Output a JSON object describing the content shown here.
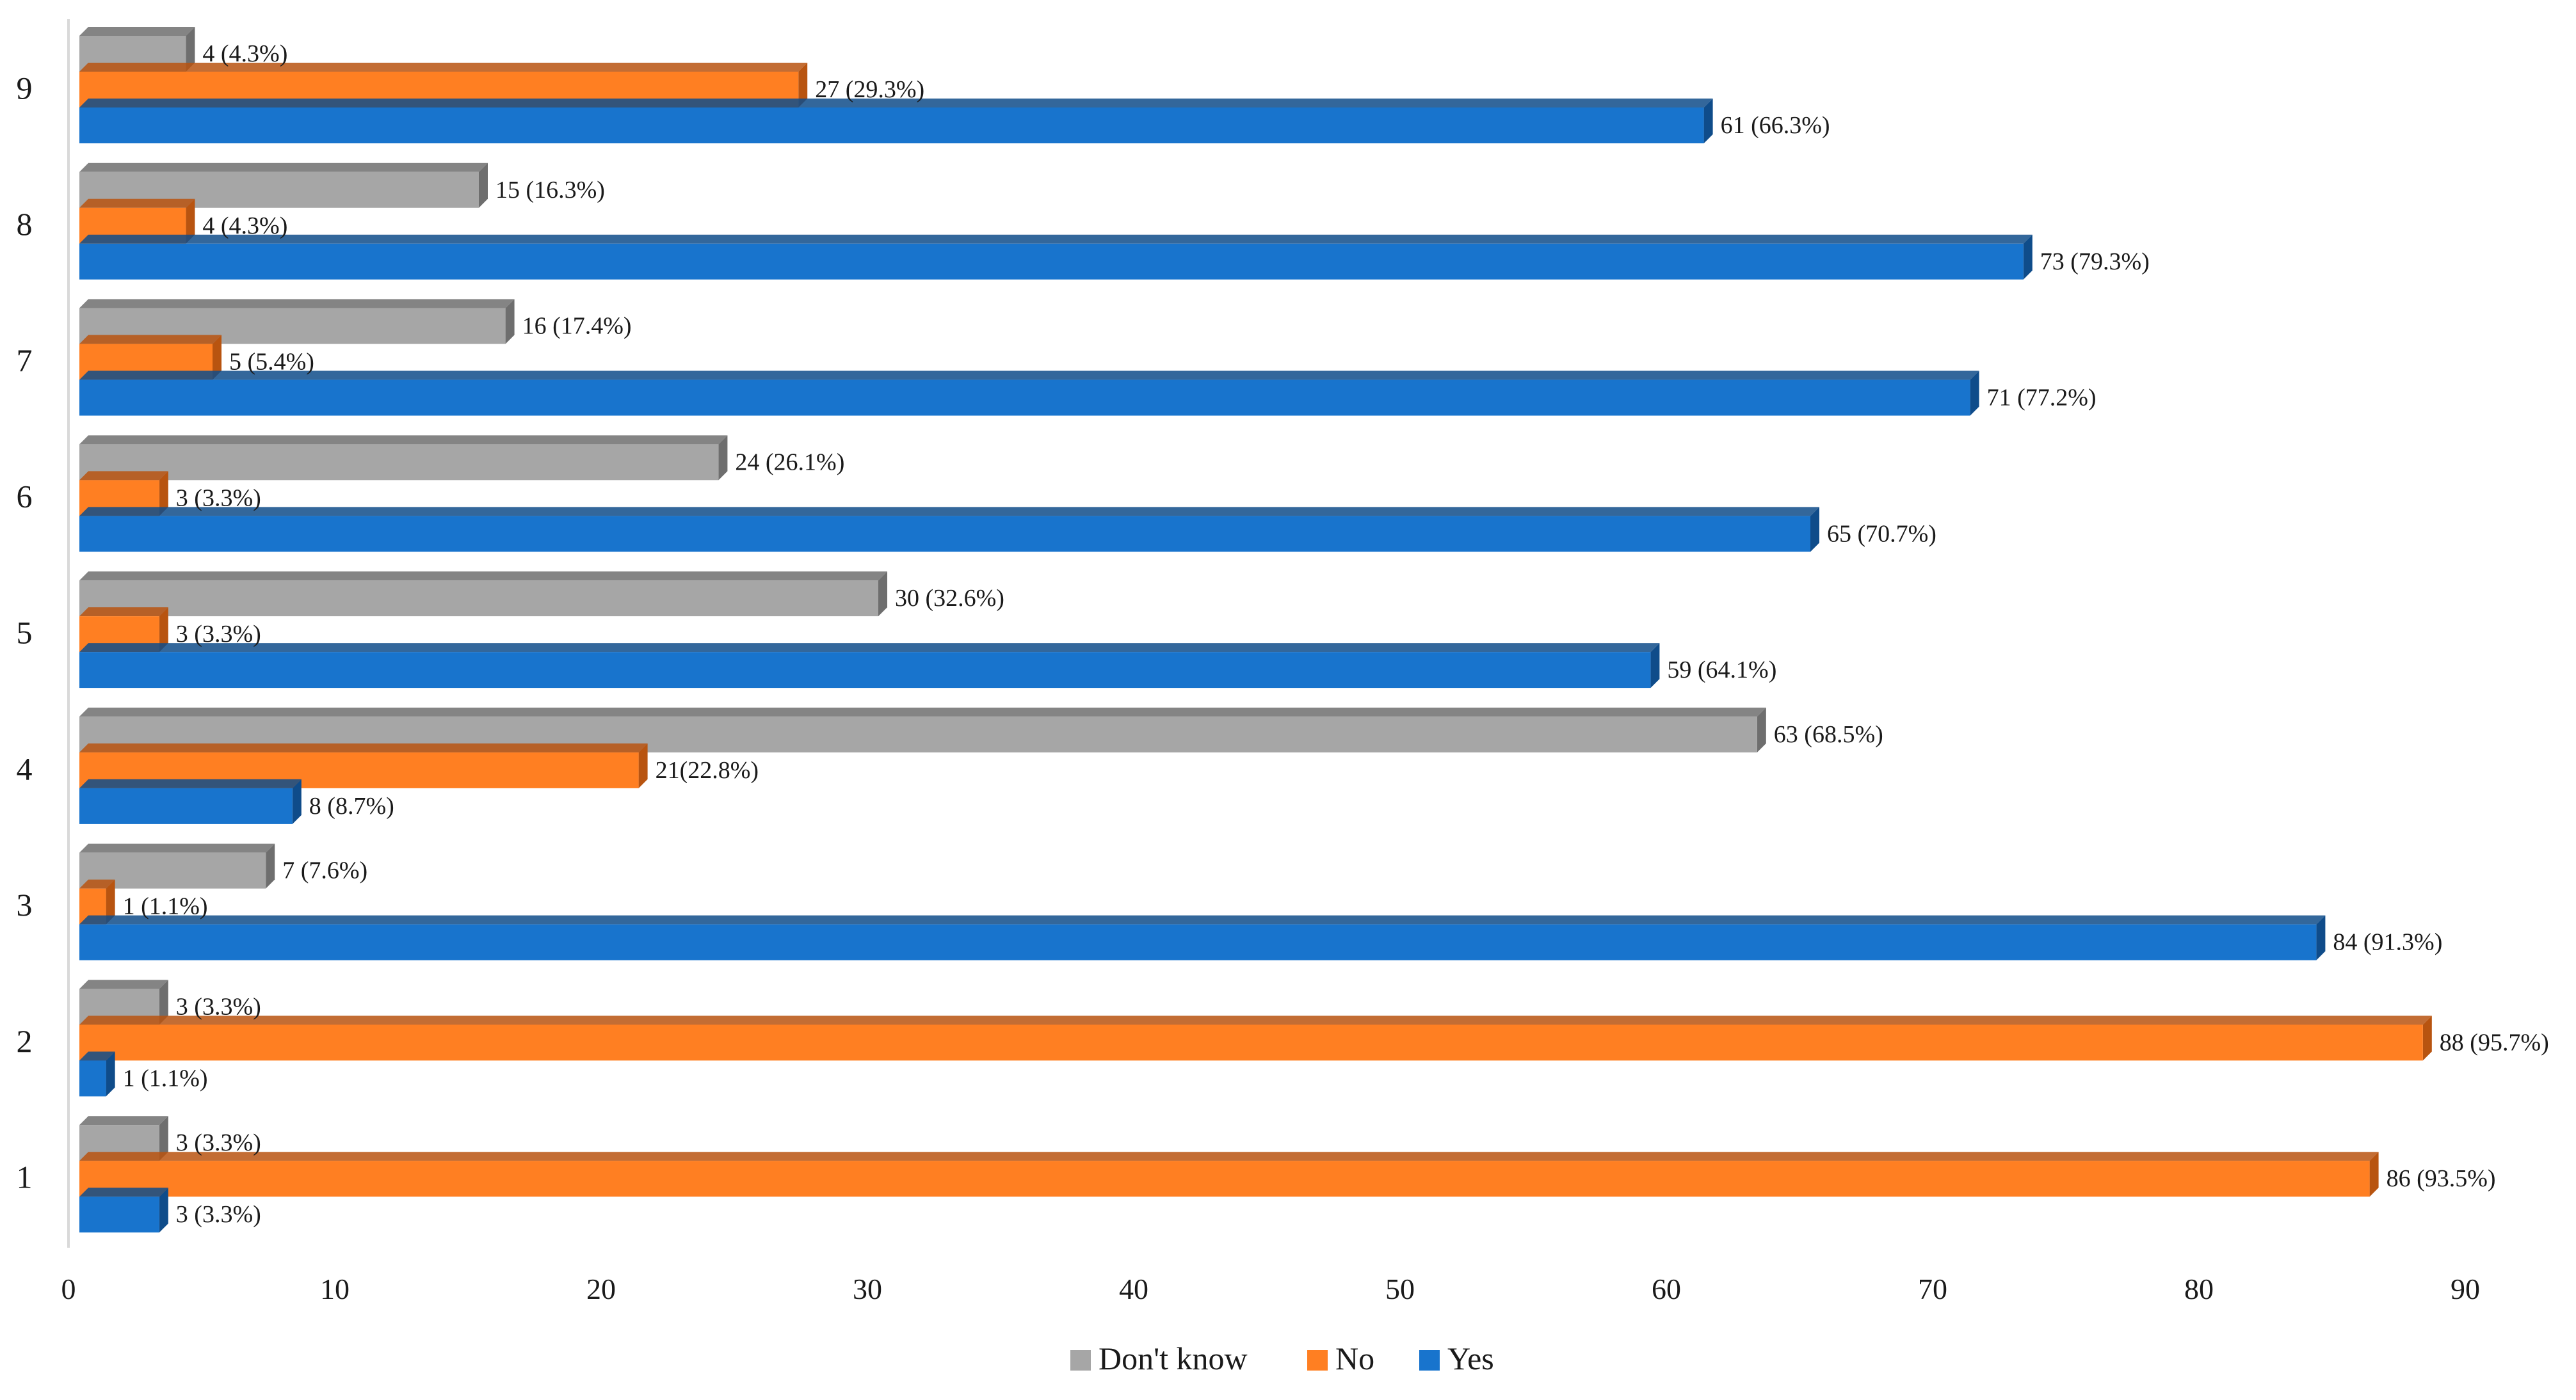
{
  "chart_data": {
    "type": "bar",
    "orientation": "horizontal",
    "style": "3d-clustered",
    "categories": [
      "1",
      "2",
      "3",
      "4",
      "5",
      "6",
      "7",
      "8",
      "9"
    ],
    "series": [
      {
        "name": "Yes",
        "color": "#1874CD",
        "side_color": "#0F4C8A",
        "values": [
          3,
          1,
          84,
          8,
          59,
          65,
          71,
          73,
          61
        ],
        "labels": [
          "3 (3.3%)",
          "1 (1.1%)",
          "84 (91.3%)",
          "8 (8.7%)",
          "59 (64.1%)",
          "65 (70.7%)",
          "71 (77.2%)",
          "73 (79.3%)",
          "61 (66.3%)"
        ]
      },
      {
        "name": "No",
        "color": "#FF7F22",
        "side_color": "#B85410",
        "values": [
          86,
          88,
          1,
          21,
          3,
          3,
          5,
          4,
          27
        ],
        "labels": [
          "86 (93.5%)",
          "88 (95.7%)",
          "1 (1.1%)",
          "21(22.8%)",
          "3 (3.3%)",
          "3 (3.3%)",
          "5 (5.4%)",
          "4 (4.3%)",
          "27 (29.3%)"
        ]
      },
      {
        "name": "Don't know",
        "color": "#A6A6A6",
        "side_color": "#6E6E6E",
        "values": [
          3,
          3,
          7,
          63,
          30,
          24,
          16,
          15,
          4
        ],
        "labels": [
          "3 (3.3%)",
          "3 (3.3%)",
          "7 (7.6%)",
          "63 (68.5%)",
          "30 (32.6%)",
          "24 (26.1%)",
          "16 (17.4%)",
          "15 (16.3%)",
          "4 (4.3%)"
        ]
      }
    ],
    "x_ticks": [
      "0",
      "10",
      "20",
      "30",
      "40",
      "50",
      "60",
      "70",
      "80",
      "90"
    ],
    "xlim": [
      0,
      90
    ],
    "title": "",
    "xlabel": "",
    "ylabel": "",
    "grid": false,
    "legend": {
      "position": "bottom-center",
      "order": [
        "Don't know",
        "No",
        "Yes"
      ]
    }
  }
}
